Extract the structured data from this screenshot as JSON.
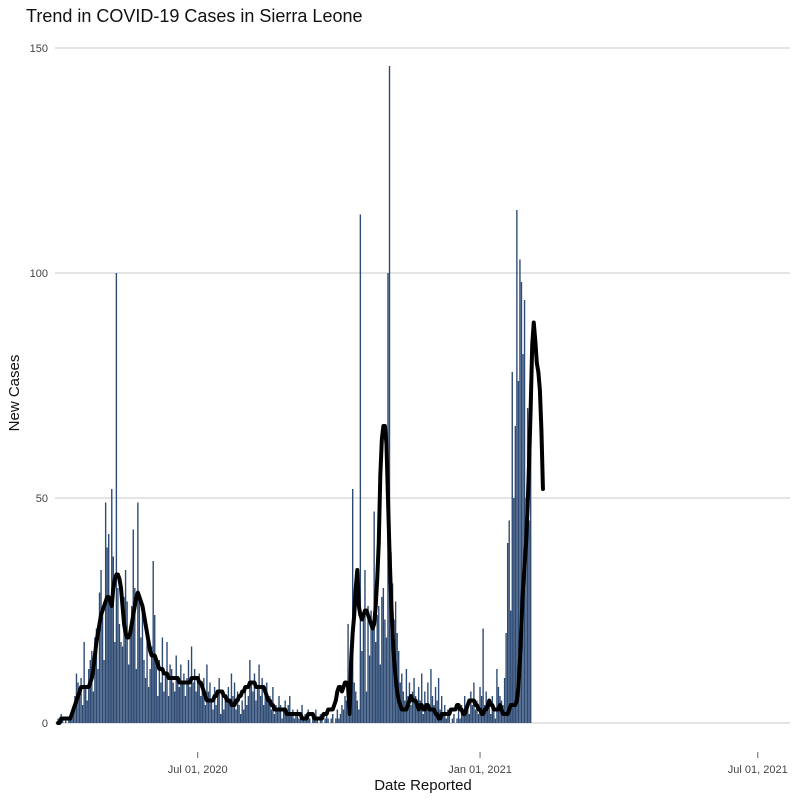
{
  "chart_data": {
    "type": "bar",
    "title": "Trend in COVID-19 Cases in Sierra Leone",
    "xlabel": "Date Reported",
    "ylabel": "New Cases",
    "ylim": [
      0,
      150
    ],
    "yticks": [
      0,
      50,
      100,
      150
    ],
    "xlim": [
      "2020-03-30",
      "2021-07-22"
    ],
    "xticks": [
      {
        "date": "2020-07-01",
        "label": "Jul 01,  2020"
      },
      {
        "date": "2021-01-01",
        "label": "Jan 01,  2021"
      },
      {
        "date": "2021-07-01",
        "label": "Jul 01,  2021"
      }
    ],
    "grid": "horizontal",
    "bar_color": "#2d4a73",
    "line_color": "#000000",
    "start_date": "2020-04-01",
    "series": [
      {
        "type": "bar",
        "values": [
          1,
          0,
          2,
          1,
          0,
          1,
          0,
          1,
          2,
          1,
          3,
          6,
          11,
          9,
          7,
          10,
          4,
          18,
          8,
          5,
          12,
          14,
          16,
          7,
          19,
          21,
          12,
          29,
          34,
          25,
          14,
          49,
          39,
          42,
          27,
          52,
          37,
          18,
          100,
          30,
          22,
          18,
          17,
          28,
          34,
          27,
          13,
          19,
          26,
          43,
          30,
          12,
          49,
          28,
          19,
          25,
          14,
          10,
          18,
          8,
          12,
          17,
          36,
          24,
          15,
          6,
          14,
          9,
          19,
          7,
          11,
          18,
          6,
          13,
          12,
          9,
          7,
          15,
          10,
          8,
          13,
          9,
          11,
          6,
          10,
          14,
          8,
          17,
          9,
          12,
          7,
          10,
          11,
          6,
          8,
          10,
          4,
          13,
          7,
          9,
          5,
          3,
          8,
          4,
          6,
          10,
          2,
          7,
          3,
          5,
          6,
          8,
          4,
          11,
          6,
          9,
          3,
          7,
          4,
          2,
          5,
          3,
          8,
          4,
          6,
          14,
          9,
          7,
          11,
          5,
          8,
          13,
          6,
          10,
          4,
          7,
          9,
          5,
          6,
          3,
          8,
          2,
          4,
          3,
          6,
          4,
          1,
          3,
          5,
          2,
          4,
          6,
          2,
          3,
          1,
          2,
          3,
          1,
          2,
          4,
          1,
          2,
          1,
          3,
          1,
          0,
          2,
          1,
          3,
          1,
          0,
          2,
          1,
          0,
          1,
          2,
          1,
          0,
          1,
          2,
          0,
          1,
          3,
          1,
          2,
          4,
          3,
          6,
          5,
          22,
          8,
          6,
          52,
          9,
          7,
          5,
          3,
          113,
          16,
          23,
          34,
          7,
          26,
          15,
          25,
          21,
          47,
          18,
          24,
          26,
          13,
          28,
          30,
          23,
          19,
          100,
          146,
          38,
          31,
          23,
          27,
          20,
          16,
          9,
          11,
          7,
          5,
          12,
          6,
          9,
          4,
          7,
          10,
          6,
          3,
          8,
          5,
          11,
          2,
          7,
          4,
          9,
          3,
          12,
          6,
          4,
          8,
          5,
          10,
          3,
          6,
          2,
          4,
          1,
          3,
          2,
          0,
          1,
          2,
          0,
          1,
          3,
          1,
          4,
          2,
          6,
          3,
          5,
          2,
          7,
          4,
          9,
          3,
          5,
          2,
          8,
          6,
          21,
          4,
          7,
          3,
          5,
          2,
          6,
          4,
          1,
          12,
          8,
          6,
          5,
          4,
          10,
          20,
          40,
          45,
          25,
          78,
          50,
          66,
          114,
          76,
          103,
          98,
          82,
          94,
          50,
          70,
          45,
          63
        ]
      },
      {
        "type": "line",
        "values": [
          0,
          0,
          1,
          1,
          1,
          1,
          1,
          1,
          1,
          2,
          3,
          4,
          5,
          6,
          7,
          8,
          8,
          8,
          8,
          8,
          8,
          9,
          10,
          12,
          15,
          18,
          20,
          22,
          24,
          25,
          26,
          27,
          28,
          28,
          27,
          26,
          30,
          32,
          33,
          33,
          32,
          30,
          26,
          22,
          20,
          19,
          19,
          20,
          22,
          24,
          26,
          28,
          29,
          28,
          27,
          26,
          24,
          22,
          20,
          18,
          16,
          15,
          15,
          15,
          14,
          13,
          12,
          12,
          12,
          11,
          11,
          11,
          10,
          10,
          10,
          10,
          10,
          10,
          10,
          9,
          9,
          9,
          9,
          9,
          9,
          9,
          9,
          10,
          10,
          10,
          10,
          10,
          9,
          9,
          8,
          7,
          6,
          5,
          5,
          5,
          5,
          5,
          6,
          6,
          7,
          7,
          7,
          7,
          6,
          6,
          5,
          5,
          5,
          4,
          4,
          4,
          5,
          5,
          6,
          6,
          7,
          7,
          8,
          8,
          8,
          9,
          9,
          9,
          9,
          8,
          8,
          8,
          8,
          8,
          8,
          7,
          6,
          5,
          5,
          4,
          4,
          3,
          3,
          3,
          3,
          3,
          3,
          3,
          3,
          2,
          2,
          2,
          2,
          2,
          2,
          2,
          2,
          2,
          2,
          1,
          1,
          1,
          1,
          2,
          2,
          2,
          2,
          1,
          1,
          1,
          1,
          1,
          1,
          2,
          2,
          2,
          3,
          3,
          3,
          3,
          4,
          5,
          7,
          8,
          8,
          7,
          8,
          9,
          9,
          8,
          2,
          14,
          20,
          24,
          30,
          34,
          26,
          24,
          23,
          24,
          25,
          25,
          24,
          23,
          22,
          21,
          22,
          26,
          32,
          40,
          55,
          63,
          66,
          66,
          62,
          50,
          38,
          28,
          20,
          14,
          10,
          7,
          5,
          4,
          3,
          3,
          3,
          3,
          4,
          5,
          6,
          5,
          5,
          5,
          4,
          3,
          4,
          4,
          3,
          3,
          4,
          4,
          3,
          3,
          3,
          3,
          2,
          2,
          1,
          1,
          2,
          2,
          2,
          2,
          2,
          2,
          3,
          3,
          3,
          3,
          4,
          4,
          3,
          3,
          2,
          2,
          3,
          4,
          5,
          5,
          5,
          5,
          4,
          4,
          3,
          3,
          2,
          2,
          3,
          3,
          4,
          5,
          4,
          4,
          3,
          3,
          3,
          3,
          4,
          3,
          2,
          2,
          2,
          2,
          3,
          4,
          4,
          4,
          4,
          5,
          8,
          14,
          22,
          30,
          35,
          40,
          48,
          58,
          70,
          84,
          89,
          85,
          80,
          78,
          74,
          65,
          52
        ]
      }
    ]
  }
}
